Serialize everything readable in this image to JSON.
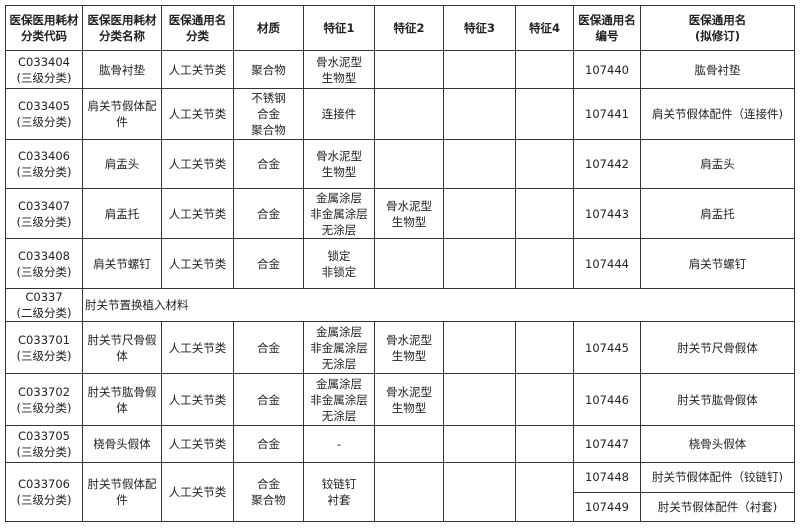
{
  "headers": [
    "医保医用耗材\n分类代码",
    "医保医用耗材\n分类名称",
    "医保通用名\n分类",
    "材质",
    "特征1",
    "特征2",
    "特征3",
    "特征4",
    "医保通用名\n编号",
    "医保通用名\n(拟修订)"
  ],
  "rows": [
    {
      "code": "C033404\n(三级分类)",
      "name": "肱骨衬垫",
      "category": "人工关节类",
      "material": "聚合物",
      "f1": "骨水泥型\n生物型",
      "f2": "",
      "f3": "",
      "f4": "",
      "numbers": [
        "107440"
      ],
      "generic": [
        "肱骨衬垫"
      ]
    },
    {
      "code": "C033405\n(三级分类)",
      "name": "肩关节假体配\n件",
      "category": "人工关节类",
      "material": "不锈钢\n合金\n聚合物",
      "f1": "连接件",
      "f2": "",
      "f3": "",
      "f4": "",
      "numbers": [
        "107441"
      ],
      "generic": [
        "肩关节假体配件（连接件)"
      ]
    },
    {
      "code": "C033406\n(三级分类)",
      "name": "肩盂头",
      "category": "人工关节类",
      "material": "合金",
      "f1": "骨水泥型\n生物型",
      "f2": "",
      "f3": "",
      "f4": "",
      "numbers": [
        "107442"
      ],
      "generic": [
        "肩盂头"
      ]
    },
    {
      "code": "C033407\n(三级分类)",
      "name": "肩盂托",
      "category": "人工关节类",
      "material": "合金",
      "f1": "金属涂层\n非金属涂层\n无涂层",
      "f2": "骨水泥型\n生物型",
      "f3": "",
      "f4": "",
      "numbers": [
        "107443"
      ],
      "generic": [
        "肩盂托"
      ]
    },
    {
      "code": "C033408\n(三级分类)",
      "name": "肩关节螺钉",
      "category": "人工关节类",
      "material": "合金",
      "f1": "锁定\n非锁定",
      "f2": "",
      "f3": "",
      "f4": "",
      "numbers": [
        "107444"
      ],
      "generic": [
        "肩关节螺钉"
      ]
    }
  ],
  "section": {
    "code": "C0337\n(二级分类)",
    "name": "肘关节置换植入材料"
  },
  "rows2": [
    {
      "code": "C033701\n(三级分类)",
      "name": "肘关节尺骨假\n体",
      "category": "人工关节类",
      "material": "合金",
      "f1": "金属涂层\n非金属涂层\n无涂层",
      "f2": "骨水泥型\n生物型",
      "f3": "",
      "f4": "",
      "numbers": [
        "107445"
      ],
      "generic": [
        "肘关节尺骨假体"
      ]
    },
    {
      "code": "C033702\n(三级分类)",
      "name": "肘关节肱骨假\n体",
      "category": "人工关节类",
      "material": "合金",
      "f1": "金属涂层\n非金属涂层\n无涂层",
      "f2": "骨水泥型\n生物型",
      "f3": "",
      "f4": "",
      "numbers": [
        "107446"
      ],
      "generic": [
        "肘关节肱骨假体"
      ]
    },
    {
      "code": "C033705\n(三级分类)",
      "name": "桡骨头假体",
      "category": "人工关节类",
      "material": "合金",
      "f1": "-",
      "f2": "",
      "f3": "",
      "f4": "",
      "numbers": [
        "107447"
      ],
      "generic": [
        "桡骨头假体"
      ]
    },
    {
      "code": "C033706\n(三级分类)",
      "name": "肘关节假体配\n件",
      "category": "人工关节类",
      "material": "合金\n聚合物",
      "f1": "铰链钉\n衬套",
      "f2": "",
      "f3": "",
      "f4": "",
      "numbers": [
        "107448",
        "107449"
      ],
      "generic": [
        "肘关节假体配件（铰链钉)",
        "肘关节假体配件（衬套)"
      ]
    }
  ]
}
